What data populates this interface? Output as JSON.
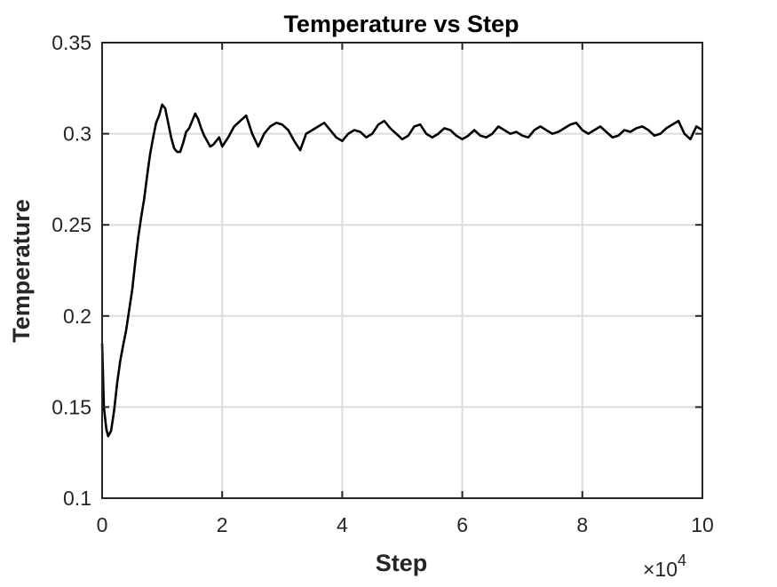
{
  "chart_data": {
    "type": "line",
    "title": "Temperature vs Step",
    "xlabel": "Step",
    "ylabel": "Temperature",
    "x_scale_multiplier_text": "×10",
    "x_scale_exponent": "4",
    "xlim": [
      0,
      100000
    ],
    "ylim": [
      0.1,
      0.35
    ],
    "x_ticks": [
      0,
      20000,
      40000,
      60000,
      80000,
      100000
    ],
    "x_tick_labels": [
      "0",
      "2",
      "4",
      "6",
      "8",
      "10"
    ],
    "y_ticks": [
      0.1,
      0.15,
      0.2,
      0.25,
      0.3,
      0.35
    ],
    "y_tick_labels": [
      "0.1",
      "0.15",
      "0.2",
      "0.25",
      "0.3",
      "0.35"
    ],
    "grid": true,
    "legend": "none",
    "series": [
      {
        "color": "#000000",
        "x": [
          0,
          300,
          700,
          1000,
          1500,
          2000,
          2500,
          3000,
          3500,
          4000,
          4500,
          5000,
          5500,
          6000,
          6500,
          7000,
          7500,
          8000,
          8500,
          9000,
          9500,
          10000,
          10500,
          11000,
          11500,
          12000,
          12500,
          13000,
          13500,
          14000,
          14500,
          15000,
          15500,
          16000,
          16500,
          17000,
          17500,
          18000,
          18500,
          19000,
          19500,
          20000,
          21000,
          22000,
          23000,
          24000,
          25000,
          26000,
          27000,
          28000,
          29000,
          30000,
          31000,
          32000,
          33000,
          34000,
          35000,
          36000,
          37000,
          38000,
          39000,
          40000,
          41000,
          42000,
          43000,
          44000,
          45000,
          46000,
          47000,
          48000,
          49000,
          50000,
          51000,
          52000,
          53000,
          54000,
          55000,
          56000,
          57000,
          58000,
          59000,
          60000,
          61000,
          62000,
          63000,
          64000,
          65000,
          66000,
          67000,
          68000,
          69000,
          70000,
          71000,
          72000,
          73000,
          74000,
          75000,
          76000,
          77000,
          78000,
          79000,
          80000,
          81000,
          82000,
          83000,
          84000,
          85000,
          86000,
          87000,
          88000,
          89000,
          90000,
          91000,
          92000,
          93000,
          94000,
          95000,
          96000,
          97000,
          98000,
          99000,
          100000
        ],
        "y": [
          0.185,
          0.15,
          0.138,
          0.134,
          0.137,
          0.148,
          0.163,
          0.175,
          0.184,
          0.192,
          0.203,
          0.214,
          0.229,
          0.243,
          0.254,
          0.264,
          0.277,
          0.289,
          0.298,
          0.306,
          0.31,
          0.316,
          0.314,
          0.306,
          0.298,
          0.292,
          0.29,
          0.29,
          0.295,
          0.301,
          0.303,
          0.307,
          0.311,
          0.308,
          0.303,
          0.299,
          0.296,
          0.293,
          0.294,
          0.296,
          0.298,
          0.293,
          0.298,
          0.304,
          0.307,
          0.31,
          0.3,
          0.293,
          0.3,
          0.304,
          0.306,
          0.305,
          0.302,
          0.296,
          0.291,
          0.3,
          0.302,
          0.304,
          0.306,
          0.302,
          0.298,
          0.296,
          0.3,
          0.302,
          0.301,
          0.298,
          0.3,
          0.305,
          0.307,
          0.303,
          0.3,
          0.297,
          0.299,
          0.304,
          0.305,
          0.3,
          0.298,
          0.3,
          0.303,
          0.302,
          0.299,
          0.297,
          0.299,
          0.302,
          0.299,
          0.298,
          0.3,
          0.304,
          0.302,
          0.3,
          0.301,
          0.299,
          0.298,
          0.302,
          0.304,
          0.302,
          0.3,
          0.301,
          0.303,
          0.305,
          0.306,
          0.302,
          0.3,
          0.302,
          0.304,
          0.301,
          0.298,
          0.299,
          0.302,
          0.301,
          0.303,
          0.304,
          0.302,
          0.299,
          0.3,
          0.303,
          0.305,
          0.307,
          0.3,
          0.297,
          0.304,
          0.302
        ]
      }
    ]
  }
}
